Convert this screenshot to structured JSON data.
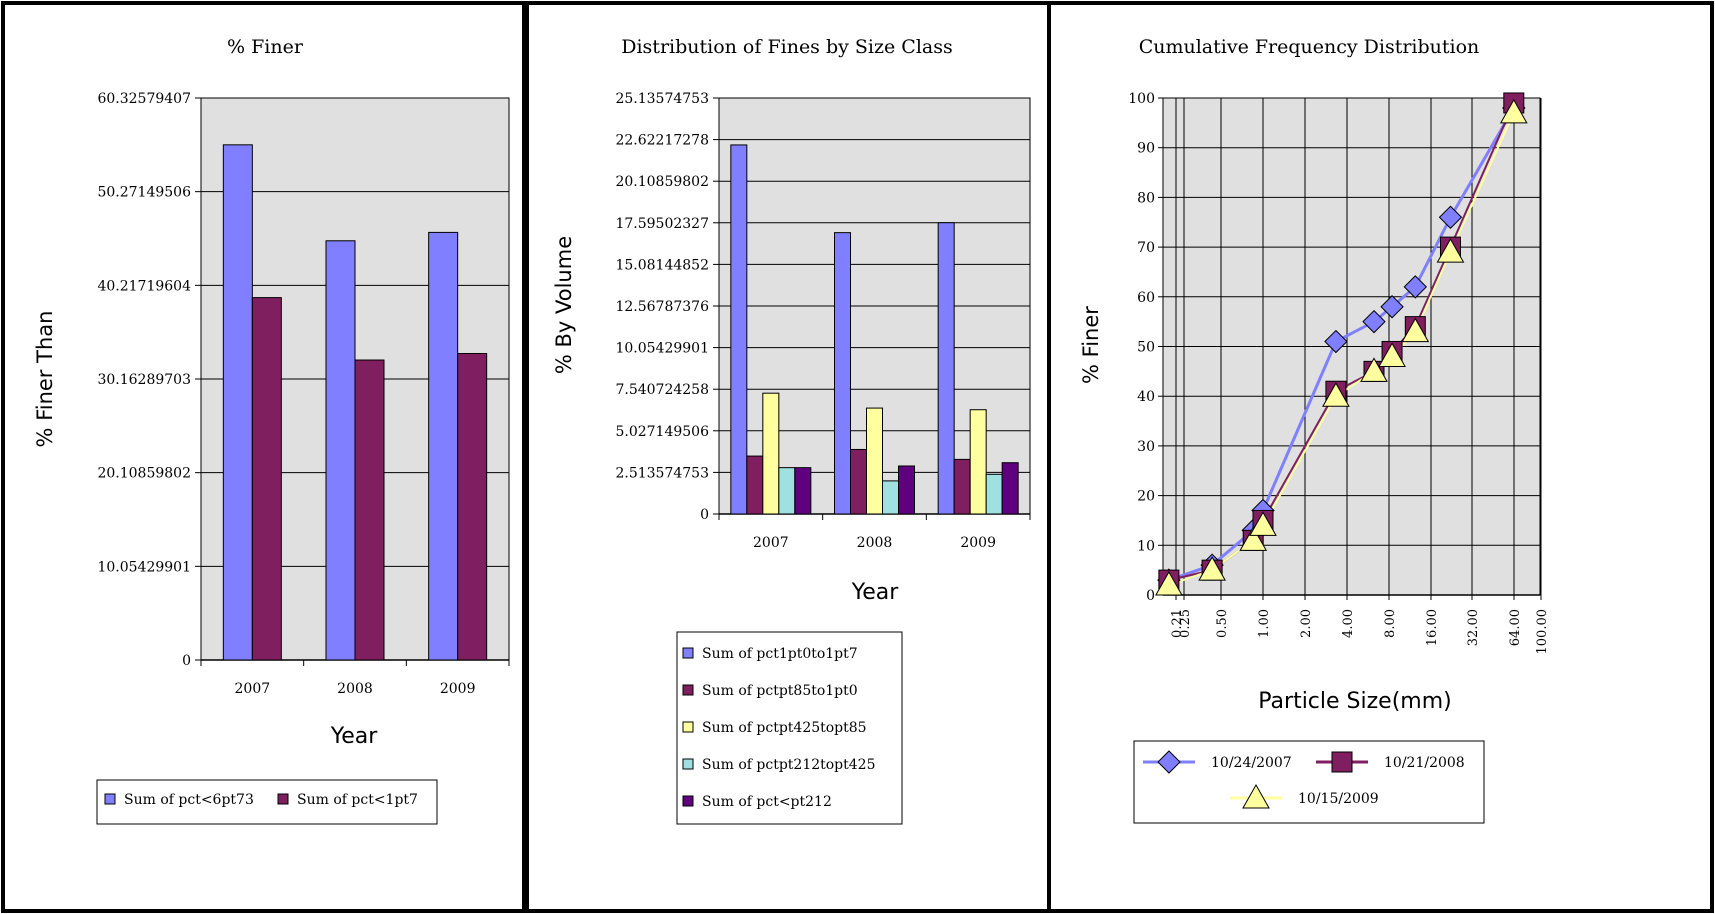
{
  "chart_data": [
    {
      "type": "bar",
      "title": "% Finer",
      "xlabel": "Year",
      "ylabel": "% Finer Than",
      "categories": [
        "2007",
        "2008",
        "2009"
      ],
      "ylim": [
        0,
        60.32579407
      ],
      "y_ticks": [
        "0",
        "10.05429901",
        "20.10859802",
        "30.16289703",
        "40.21719604",
        "50.27149506",
        "60.32579407"
      ],
      "grid": true,
      "legend_position": "bottom",
      "series": [
        {
          "name": "Sum of pct<6pt73",
          "color": "#7f7fff",
          "values": [
            55.3,
            45.0,
            45.9
          ]
        },
        {
          "name": "Sum of pct<1pt7",
          "color": "#7f1f5f",
          "values": [
            38.9,
            32.2,
            32.9
          ]
        }
      ]
    },
    {
      "type": "bar",
      "title": "Distribution of Fines by Size Class",
      "xlabel": "Year",
      "ylabel": "% By Volume",
      "categories": [
        "2007",
        "2008",
        "2009"
      ],
      "ylim": [
        0,
        25.13574753
      ],
      "y_ticks": [
        "0",
        "2.513574753",
        "5.027149506",
        "7.540724258",
        "10.05429901",
        "12.56787376",
        "15.08144852",
        "17.59502327",
        "20.10859802",
        "22.62217278",
        "25.13574753"
      ],
      "grid": true,
      "legend_position": "bottom",
      "series": [
        {
          "name": "Sum of pct1pt0to1pt7",
          "color": "#7f7fff",
          "values": [
            22.3,
            17.0,
            17.6
          ]
        },
        {
          "name": "Sum of pctpt85to1pt0",
          "color": "#7f1f5f",
          "values": [
            3.5,
            3.9,
            3.3
          ]
        },
        {
          "name": "Sum of pctpt425topt85",
          "color": "#ffff9f",
          "values": [
            7.3,
            6.4,
            6.3
          ]
        },
        {
          "name": "Sum of pctpt212topt425",
          "color": "#9fe0e0",
          "values": [
            2.8,
            2.0,
            2.4
          ]
        },
        {
          "name": "Sum of pct<pt212",
          "color": "#5f007f",
          "values": [
            2.8,
            2.9,
            3.1
          ]
        }
      ]
    },
    {
      "type": "line",
      "title": "Cumulative Frequency Distribution",
      "xlabel": "Particle Size(mm)",
      "ylabel": "% Finer",
      "x_scale": "log",
      "x_ticks": [
        "0.21",
        "0.25",
        "0.50",
        "1.00",
        "2.00",
        "4.00",
        "8.00",
        "16.00",
        "32.00",
        "64.00",
        "100.00"
      ],
      "ylim": [
        0,
        100
      ],
      "y_ticks": [
        "0",
        "10",
        "20",
        "30",
        "40",
        "50",
        "60",
        "70",
        "80",
        "90",
        "100"
      ],
      "grid": true,
      "legend_position": "bottom",
      "series": [
        {
          "name": "10/24/2007",
          "color": "#7f7fff",
          "marker": "diamond",
          "x": [
            0.21,
            0.43,
            0.85,
            1.0,
            3.35,
            6.3,
            8.5,
            12.5,
            22.4,
            64
          ],
          "y": [
            3,
            6,
            13,
            17,
            51,
            55,
            58,
            62,
            76,
            98
          ]
        },
        {
          "name": "10/21/2008",
          "color": "#7f1f5f",
          "marker": "square",
          "x": [
            0.21,
            0.43,
            0.85,
            1.0,
            3.35,
            6.3,
            8.5,
            12.5,
            22.4,
            64
          ],
          "y": [
            3,
            5,
            11,
            15,
            41,
            45,
            49,
            54,
            70,
            99
          ]
        },
        {
          "name": "10/15/2009",
          "color": "#ffff9f",
          "marker": "triangle",
          "x": [
            0.21,
            0.43,
            0.85,
            1.0,
            3.35,
            6.3,
            8.5,
            12.5,
            22.4,
            64
          ],
          "y": [
            2,
            5,
            11,
            14,
            40,
            45,
            48,
            53,
            69,
            97
          ]
        }
      ]
    }
  ]
}
